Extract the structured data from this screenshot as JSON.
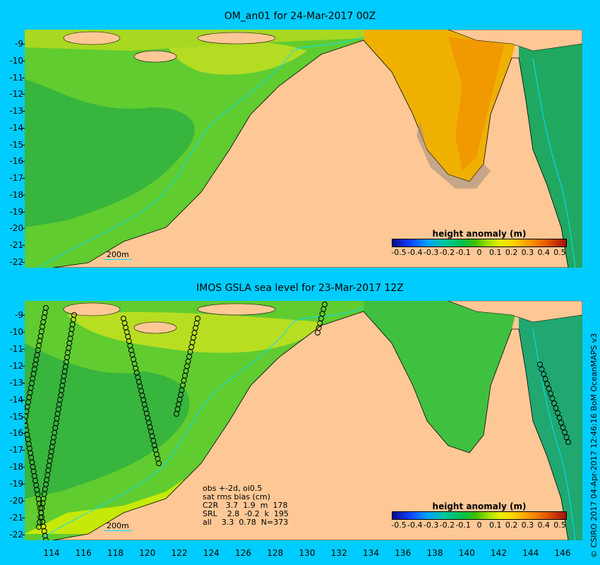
{
  "top_panel": {
    "title": "OM_an01 for 24-Mar-2017 00Z",
    "depth_label": "200m",
    "colorbar_title": "height anomaly (m)"
  },
  "bottom_panel": {
    "title": "IMOS GSLA sea level  for 23-Mar-2017 12Z",
    "depth_label": "200m",
    "colorbar_title": "height anomaly (m)",
    "stats": {
      "line1": "obs +-2d, oi0.5",
      "line2": "sat rms bias (cm)",
      "line3": "C2R   3.7  1.9  m  178",
      "line4": "SRL    2.8  -0.2  k  195",
      "line5": "all    3.3  0.78  N=373"
    }
  },
  "colorbar_ticks": [
    "-0.5",
    "-0.4",
    "-0.3",
    "-0.2",
    "-0.1",
    "0",
    "0.1",
    "0.2",
    "0.3",
    "0.4",
    "0.5"
  ],
  "lat_ticks": [
    "-9",
    "-10",
    "-11",
    "-12",
    "-13",
    "-14",
    "-15",
    "-16",
    "-17",
    "-18",
    "-19",
    "-20",
    "-21",
    "-22"
  ],
  "lon_ticks": [
    "114",
    "116",
    "118",
    "120",
    "122",
    "124",
    "126",
    "128",
    "130",
    "132",
    "134",
    "136",
    "138",
    "140",
    "142",
    "144",
    "146"
  ],
  "credit": "© CSIRO 2017  04-Apr-2017 12:46:16 BoM OceanMAPS v3",
  "colors": {
    "background": "#00ccff",
    "land": "#fdc896",
    "ocean_green": "#40c040",
    "anomaly_high": "#f0a000",
    "coastline": "#000000",
    "isobath": "#00e0ff"
  }
}
